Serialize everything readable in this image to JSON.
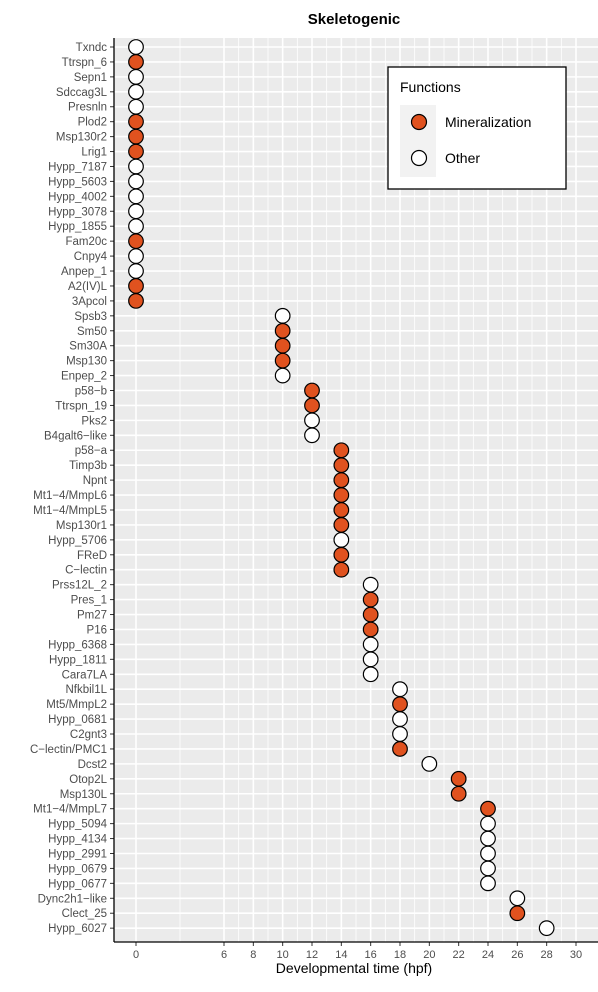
{
  "chart_data": {
    "type": "scatter",
    "title": "Skeletogenic",
    "xlabel": "Developmental time (hpf)",
    "ylabel": "",
    "xlim": [
      -1.5,
      31.5
    ],
    "x_ticks": [
      0,
      6,
      8,
      10,
      12,
      14,
      16,
      18,
      20,
      22,
      24,
      26,
      28,
      30
    ],
    "grid": true,
    "legend_position": "top-right",
    "legend": {
      "title": "Functions",
      "entries": [
        {
          "label": "Mineralization",
          "color": "#E0521F"
        },
        {
          "label": "Other",
          "color": "#FFFFFF"
        }
      ]
    },
    "colors": {
      "Mineralization": "#E0521F",
      "Other": "#FFFFFF",
      "panel": "#EBEBEB"
    },
    "points": [
      {
        "gene": "Txndc",
        "x": 0,
        "function": "Other"
      },
      {
        "gene": "Ttrspn_6",
        "x": 0,
        "function": "Mineralization"
      },
      {
        "gene": "Sepn1",
        "x": 0,
        "function": "Other"
      },
      {
        "gene": "Sdccag3L",
        "x": 0,
        "function": "Other"
      },
      {
        "gene": "Presnln",
        "x": 0,
        "function": "Other"
      },
      {
        "gene": "Plod2",
        "x": 0,
        "function": "Mineralization"
      },
      {
        "gene": "Msp130r2",
        "x": 0,
        "function": "Mineralization"
      },
      {
        "gene": "Lrig1",
        "x": 0,
        "function": "Mineralization"
      },
      {
        "gene": "Hypp_7187",
        "x": 0,
        "function": "Other"
      },
      {
        "gene": "Hypp_5603",
        "x": 0,
        "function": "Other"
      },
      {
        "gene": "Hypp_4002",
        "x": 0,
        "function": "Other"
      },
      {
        "gene": "Hypp_3078",
        "x": 0,
        "function": "Other"
      },
      {
        "gene": "Hypp_1855",
        "x": 0,
        "function": "Other"
      },
      {
        "gene": "Fam20c",
        "x": 0,
        "function": "Mineralization"
      },
      {
        "gene": "Cnpy4",
        "x": 0,
        "function": "Other"
      },
      {
        "gene": "Anpep_1",
        "x": 0,
        "function": "Other"
      },
      {
        "gene": "A2(IV)L",
        "x": 0,
        "function": "Mineralization"
      },
      {
        "gene": "3Apcol",
        "x": 0,
        "function": "Mineralization"
      },
      {
        "gene": "Spsb3",
        "x": 10,
        "function": "Other"
      },
      {
        "gene": "Sm50",
        "x": 10,
        "function": "Mineralization"
      },
      {
        "gene": "Sm30A",
        "x": 10,
        "function": "Mineralization"
      },
      {
        "gene": "Msp130",
        "x": 10,
        "function": "Mineralization"
      },
      {
        "gene": "Enpep_2",
        "x": 10,
        "function": "Other"
      },
      {
        "gene": "p58−b",
        "x": 12,
        "function": "Mineralization"
      },
      {
        "gene": "Ttrspn_19",
        "x": 12,
        "function": "Mineralization"
      },
      {
        "gene": "Pks2",
        "x": 12,
        "function": "Other"
      },
      {
        "gene": "B4galt6−like",
        "x": 12,
        "function": "Other"
      },
      {
        "gene": "p58−a",
        "x": 14,
        "function": "Mineralization"
      },
      {
        "gene": "Timp3b",
        "x": 14,
        "function": "Mineralization"
      },
      {
        "gene": "Npnt",
        "x": 14,
        "function": "Mineralization"
      },
      {
        "gene": "Mt1−4/MmpL6",
        "x": 14,
        "function": "Mineralization"
      },
      {
        "gene": "Mt1−4/MmpL5",
        "x": 14,
        "function": "Mineralization"
      },
      {
        "gene": "Msp130r1",
        "x": 14,
        "function": "Mineralization"
      },
      {
        "gene": "Hypp_5706",
        "x": 14,
        "function": "Other"
      },
      {
        "gene": "FReD",
        "x": 14,
        "function": "Mineralization"
      },
      {
        "gene": "C−lectin",
        "x": 14,
        "function": "Mineralization"
      },
      {
        "gene": "Prss12L_2",
        "x": 16,
        "function": "Other"
      },
      {
        "gene": "Pres_1",
        "x": 16,
        "function": "Mineralization"
      },
      {
        "gene": "Pm27",
        "x": 16,
        "function": "Mineralization"
      },
      {
        "gene": "P16",
        "x": 16,
        "function": "Mineralization"
      },
      {
        "gene": "Hypp_6368",
        "x": 16,
        "function": "Other"
      },
      {
        "gene": "Hypp_1811",
        "x": 16,
        "function": "Other"
      },
      {
        "gene": "Cara7LA",
        "x": 16,
        "function": "Other"
      },
      {
        "gene": "Nfkbil1L",
        "x": 18,
        "function": "Other"
      },
      {
        "gene": "Mt5/MmpL2",
        "x": 18,
        "function": "Mineralization"
      },
      {
        "gene": "Hypp_0681",
        "x": 18,
        "function": "Other"
      },
      {
        "gene": "C2gnt3",
        "x": 18,
        "function": "Other"
      },
      {
        "gene": "C−lectin/PMC1",
        "x": 18,
        "function": "Mineralization"
      },
      {
        "gene": "Dcst2",
        "x": 20,
        "function": "Other"
      },
      {
        "gene": "Otop2L",
        "x": 22,
        "function": "Mineralization"
      },
      {
        "gene": "Msp130L",
        "x": 22,
        "function": "Mineralization"
      },
      {
        "gene": "Mt1−4/MmpL7",
        "x": 24,
        "function": "Mineralization"
      },
      {
        "gene": "Hypp_5094",
        "x": 24,
        "function": "Other"
      },
      {
        "gene": "Hypp_4134",
        "x": 24,
        "function": "Other"
      },
      {
        "gene": "Hypp_2991",
        "x": 24,
        "function": "Other"
      },
      {
        "gene": "Hypp_0679",
        "x": 24,
        "function": "Other"
      },
      {
        "gene": "Hypp_0677",
        "x": 24,
        "function": "Other"
      },
      {
        "gene": "Dync2h1−like",
        "x": 26,
        "function": "Other"
      },
      {
        "gene": "Clect_25",
        "x": 26,
        "function": "Mineralization"
      },
      {
        "gene": "Hypp_6027",
        "x": 28,
        "function": "Other"
      }
    ]
  }
}
